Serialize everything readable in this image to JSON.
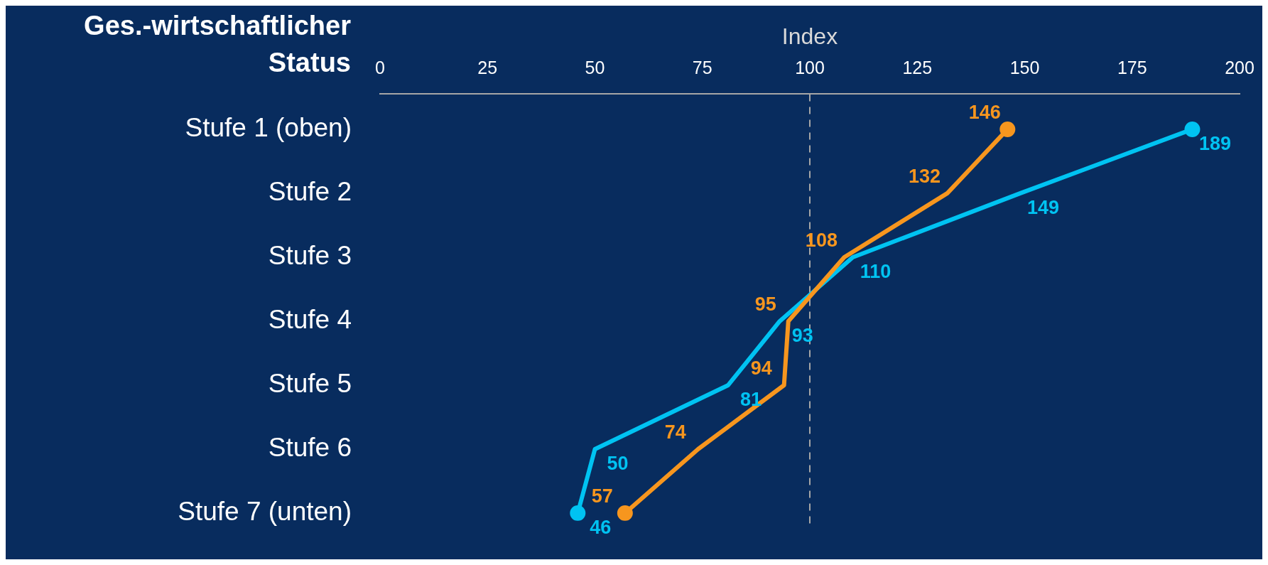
{
  "chart_data": {
    "type": "line",
    "orientation": "horizontal",
    "xlabel": "Index",
    "ylabel": "Ges.-wirtschaftlicher Status",
    "categories": [
      "Stufe 1 (oben)",
      "Stufe 2",
      "Stufe 3",
      "Stufe 4",
      "Stufe 5",
      "Stufe 6",
      "Stufe 7 (unten)"
    ],
    "series": [
      {
        "color": "#f7961e",
        "values": [
          146,
          132,
          108,
          95,
          94,
          74,
          57
        ]
      },
      {
        "color": "#00c3f2",
        "values": [
          189,
          149,
          110,
          93,
          81,
          50,
          46
        ]
      }
    ],
    "xlim": [
      0,
      200
    ],
    "xticks": [
      0,
      25,
      50,
      75,
      100,
      125,
      150,
      175,
      200
    ],
    "ref_lines": [
      {
        "axis": "x",
        "value": 100,
        "color": "#a6a6a6",
        "line_style": "dashed"
      }
    ],
    "data_labels": true,
    "grid": false,
    "legend": false,
    "line_style": "solid"
  }
}
